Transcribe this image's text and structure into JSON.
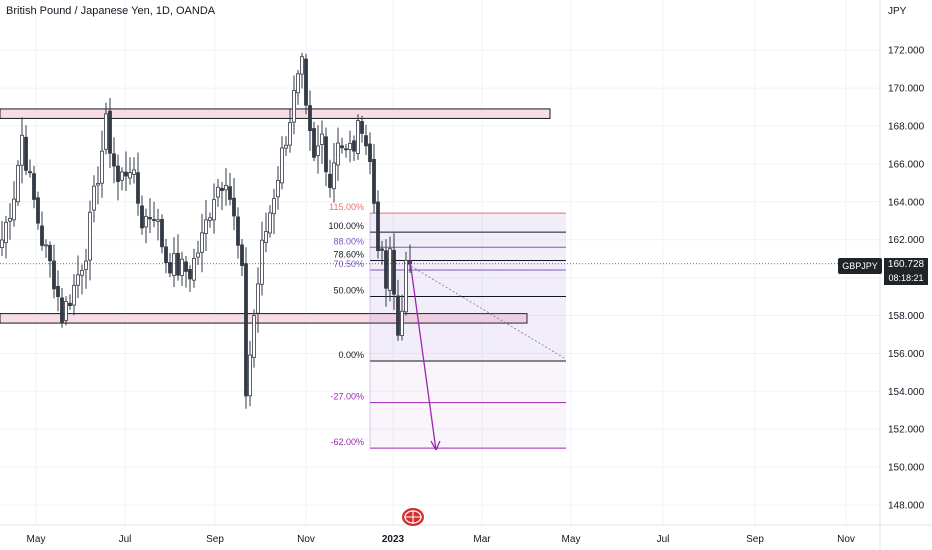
{
  "header": {
    "title": "British Pound / Japanese Yen, 1D, OANDA",
    "currency": "JPY"
  },
  "price_badge": {
    "symbol": "GBPJPY",
    "price": "160.728",
    "timer": "08:18:21"
  },
  "logo_icon": "red-globe-icon",
  "colors": {
    "candle_body": "#333a45",
    "zone_fill": "#f8d7e0",
    "fib_red": "#e57373",
    "fib_purple": "#9c27b0",
    "fib_dark": "#131722",
    "badge_bg": "#1f2429"
  },
  "chart_data": {
    "type": "candlestick",
    "title": "British Pound / Japanese Yen, 1D, OANDA",
    "ylabel": "JPY",
    "ylim": [
      147,
      174
    ],
    "y_ticks": [
      "148.000",
      "150.000",
      "152.000",
      "154.000",
      "156.000",
      "158.000",
      "160.000",
      "162.000",
      "164.000",
      "166.000",
      "168.000",
      "170.000",
      "172.000"
    ],
    "x_ticks": [
      "May",
      "Jul",
      "Sep",
      "Nov",
      "2023",
      "Mar",
      "May",
      "Jul",
      "Sep",
      "Nov"
    ],
    "last_price": 160.728,
    "anchors": [
      {
        "t": 0,
        "p": 162.0
      },
      {
        "t": 3,
        "p": 164.5
      },
      {
        "t": 5,
        "p": 167.5
      },
      {
        "t": 7,
        "p": 165.0
      },
      {
        "t": 10,
        "p": 162.0
      },
      {
        "t": 13,
        "p": 160.0
      },
      {
        "t": 15,
        "p": 158.0
      },
      {
        "t": 18,
        "p": 159.5
      },
      {
        "t": 21,
        "p": 161.5
      },
      {
        "t": 24,
        "p": 165.5
      },
      {
        "t": 26,
        "p": 168.0
      },
      {
        "t": 29,
        "p": 165.0
      },
      {
        "t": 32,
        "p": 166.0
      },
      {
        "t": 35,
        "p": 163.0
      },
      {
        "t": 38,
        "p": 163.5
      },
      {
        "t": 41,
        "p": 161.0
      },
      {
        "t": 44,
        "p": 160.5
      },
      {
        "t": 47,
        "p": 160.3
      },
      {
        "t": 50,
        "p": 162.0
      },
      {
        "t": 53,
        "p": 164.5
      },
      {
        "t": 56,
        "p": 165.5
      },
      {
        "t": 58,
        "p": 163.0
      },
      {
        "t": 60,
        "p": 160.0
      },
      {
        "t": 61,
        "p": 154.0
      },
      {
        "t": 63,
        "p": 158.0
      },
      {
        "t": 65,
        "p": 161.5
      },
      {
        "t": 68,
        "p": 164.5
      },
      {
        "t": 71,
        "p": 167.5
      },
      {
        "t": 73,
        "p": 169.5
      },
      {
        "t": 75,
        "p": 171.0
      },
      {
        "t": 76,
        "p": 168.5
      },
      {
        "t": 78,
        "p": 166.0
      },
      {
        "t": 80,
        "p": 167.5
      },
      {
        "t": 82,
        "p": 165.0
      },
      {
        "t": 84,
        "p": 167.5
      },
      {
        "t": 86,
        "p": 166.5
      },
      {
        "t": 88,
        "p": 167.0
      },
      {
        "t": 90,
        "p": 168.3
      },
      {
        "t": 92,
        "p": 166.0
      },
      {
        "t": 94,
        "p": 162.0
      },
      {
        "t": 96,
        "p": 159.5
      },
      {
        "t": 97,
        "p": 161.0
      },
      {
        "t": 99,
        "p": 157.0
      },
      {
        "t": 101,
        "p": 160.5
      },
      {
        "t": 102,
        "p": 160.7
      }
    ],
    "zones": [
      {
        "name": "resistance-zone",
        "from": 168.4,
        "to": 168.9
      },
      {
        "name": "support-zone",
        "from": 157.6,
        "to": 158.1
      }
    ],
    "fibonacci": {
      "levels": [
        {
          "label": "115.00%",
          "value": 163.4
        },
        {
          "label": "100.00%",
          "value": 162.4
        },
        {
          "label": "88.00%",
          "value": 161.6
        },
        {
          "label": "78.60%",
          "value": 160.9
        },
        {
          "label": "70.50%",
          "value": 160.4
        },
        {
          "label": "50.00%",
          "value": 159.0
        },
        {
          "label": "0.00%",
          "value": 155.6
        },
        {
          "label": "-27.00%",
          "value": 153.4
        },
        {
          "label": "-62.00%",
          "value": 151.0
        }
      ]
    },
    "projection": {
      "from_price": 160.9,
      "to_price": 150.9
    },
    "trendline": {
      "from_price": 160.7,
      "to_price": 155.7
    }
  }
}
